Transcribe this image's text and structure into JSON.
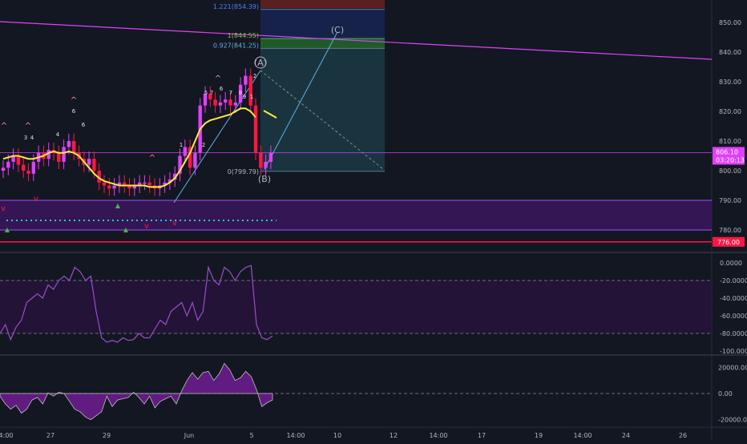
{
  "colors": {
    "background": "#131722",
    "bull_candle": "#e040fb",
    "bear_candle": "#ff1744",
    "ma_line": "#ffeb3b",
    "trendline": "#e040fb",
    "zone_fill": "#3c1660",
    "dotted_line": "#26c6da",
    "support_line": "#ff1744",
    "fib_teal": "#1c3a44",
    "fib_green": "#1f5a2a",
    "fib_red": "#5a1f1f",
    "wave_line": "#5eb0e0",
    "oscillator_line": "#9c4dcc",
    "histogram_fill": "#7b1fa2",
    "grid_text": "#b2b5be",
    "price_label_bg": "#e040fb",
    "support_label_bg": "#ff1744"
  },
  "price_axis": {
    "ticks": [
      "850.00",
      "840.00",
      "830.00",
      "820.00",
      "810.00",
      "800.00",
      "790.00",
      "780.00"
    ],
    "tick_values": [
      850,
      840,
      830,
      820,
      810,
      800,
      790,
      780
    ],
    "current_price": "806.10",
    "current_value": 806.1,
    "countdown": "03:20:13",
    "support_price": "776.00",
    "support_value": 776
  },
  "osc_axis": {
    "ticks": [
      "0.0000",
      "-20.0000",
      "-40.0000",
      "-60.0000",
      "-80.0000",
      "-100.0000"
    ],
    "tick_values": [
      0,
      -20,
      -40,
      -60,
      -80,
      -100
    ]
  },
  "hist_axis": {
    "ticks": [
      "20000.00",
      "0.00",
      "-20000.00"
    ],
    "tick_values": [
      20000,
      0,
      -20000
    ]
  },
  "time_axis": {
    "labels": [
      "14:00",
      "27",
      "29",
      "Jun",
      "5",
      "14:00",
      "10",
      "12",
      "14:00",
      "17",
      "19",
      "14:00",
      "24",
      "26"
    ]
  },
  "fib": {
    "levels": [
      "1.221(854.39)",
      "1(844.55)",
      "0.927(841.25)",
      "0(799.79)"
    ],
    "level_values": [
      854.39,
      844.55,
      841.25,
      799.79
    ]
  },
  "waves": {
    "a": "(A)",
    "b": "(B)",
    "c": "(C)"
  },
  "markers": {
    "up_arrow": "^",
    "down_arrow": "v",
    "numbers": [
      "3",
      "4",
      "4",
      "6",
      "6",
      "7",
      "5",
      "6",
      "7",
      "8",
      "9",
      "1",
      "2",
      "1",
      "2"
    ]
  },
  "chart_data": [
    {
      "type": "line",
      "title": "",
      "series": [
        {
          "values": [
            801,
            803,
            805,
            802,
            800,
            799,
            803,
            806,
            804,
            807,
            806,
            803,
            808,
            810,
            806,
            804,
            802,
            804,
            800,
            796,
            795,
            794,
            795,
            796,
            795,
            794,
            795,
            796,
            796,
            795,
            794,
            795,
            796,
            797,
            799,
            805,
            808,
            801,
            806,
            822,
            826,
            824,
            822,
            823,
            824,
            822,
            823,
            829,
            832,
            822,
            806,
            801,
            803,
            806
          ]
        }
      ],
      "moving_average": [
        804,
        804.5,
        805,
        805,
        804.5,
        804,
        804,
        804.5,
        805,
        806,
        806.5,
        806,
        806,
        806.5,
        806,
        805,
        803,
        801,
        799,
        797.5,
        796.5,
        796,
        795.5,
        795,
        795,
        795,
        795,
        795,
        795,
        794.5,
        794.5,
        794.5,
        795,
        796,
        797.5,
        800,
        803,
        806,
        810,
        814,
        816,
        817,
        817.5,
        818,
        818.5,
        819,
        820,
        821,
        821,
        820,
        818
      ]
    },
    {
      "type": "line",
      "series": [
        {
          "values": [
            -80,
            -70,
            -87,
            -73,
            -65,
            -45,
            -40,
            -35,
            -40,
            -25,
            -30,
            -20,
            -15,
            -20,
            -5,
            -10,
            -20,
            -15,
            -55,
            -85,
            -90,
            -88,
            -90,
            -85,
            -88,
            -87,
            -80,
            -85,
            -85,
            -75,
            -65,
            -70,
            -55,
            -50,
            -45,
            -60,
            -45,
            -65,
            -55,
            -5,
            -20,
            -25,
            -5,
            -10,
            -20,
            -10,
            -5,
            -3,
            -70,
            -85,
            -87,
            -83
          ]
        }
      ]
    },
    {
      "type": "area",
      "series": [
        {
          "values": [
            -2000,
            -8000,
            -12000,
            -9000,
            -15000,
            -12000,
            -5000,
            -3000,
            -8000,
            500,
            -2000,
            1000,
            0,
            -6000,
            -12000,
            -14000,
            -18000,
            -20000,
            -17000,
            -14000,
            -2000,
            -10000,
            -5000,
            -4000,
            -3000,
            1000,
            -3000,
            -8000,
            -2000,
            -11000,
            -6000,
            -4000,
            -2000,
            -8000,
            2000,
            10000,
            16000,
            11000,
            16000,
            17000,
            10000,
            15000,
            23000,
            18000,
            10000,
            12000,
            17000,
            13000,
            3000,
            -10000,
            -7000,
            -5000
          ]
        }
      ]
    }
  ]
}
